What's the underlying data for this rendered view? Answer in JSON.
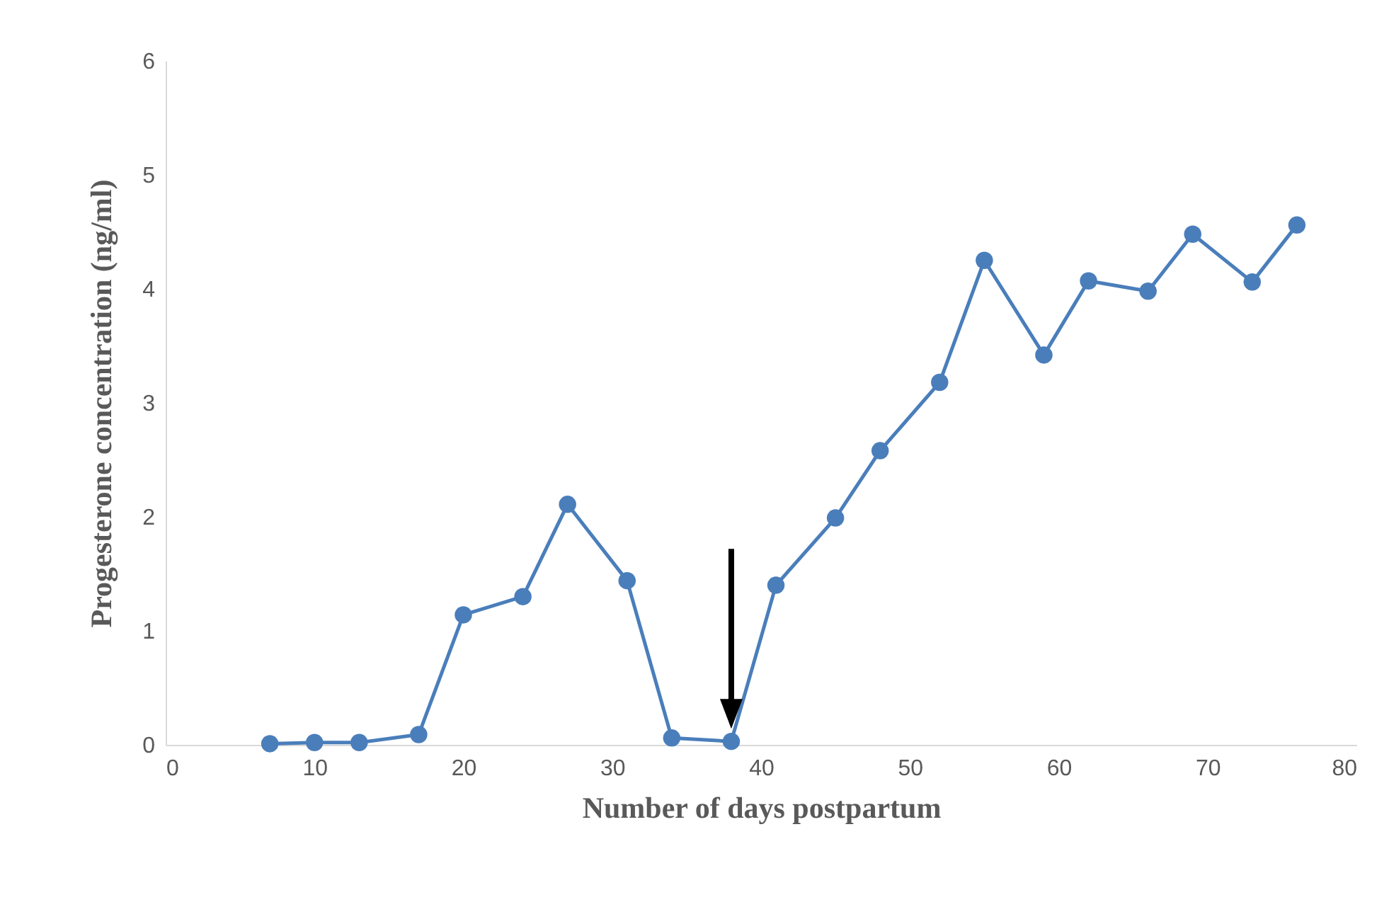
{
  "chart_data": {
    "type": "line",
    "xlabel": "Number of days postpartum",
    "ylabel": "Progesterone concentration (ng/ml)",
    "x": [
      7,
      10,
      13,
      17,
      20,
      24,
      27,
      31,
      34,
      38,
      41,
      45,
      48,
      52,
      55,
      59,
      62,
      66,
      69,
      73,
      76
    ],
    "series": [
      {
        "color": "#4a7ebb",
        "values": [
          0.01,
          0.02,
          0.02,
          0.09,
          1.14,
          1.3,
          2.11,
          1.44,
          0.06,
          0.03,
          1.4,
          1.99,
          2.58,
          3.18,
          4.25,
          3.42,
          4.07,
          3.98,
          4.48,
          4.06,
          4.56
        ]
      }
    ],
    "xlim": [
      0,
      80
    ],
    "xticks": [
      0,
      10,
      20,
      30,
      40,
      50,
      60,
      70,
      80
    ],
    "ylim": [
      0,
      6
    ],
    "yticks": [
      0,
      1,
      2,
      3,
      4,
      5,
      6
    ],
    "grid": false,
    "marker": "circle",
    "line_style": "solid"
  }
}
